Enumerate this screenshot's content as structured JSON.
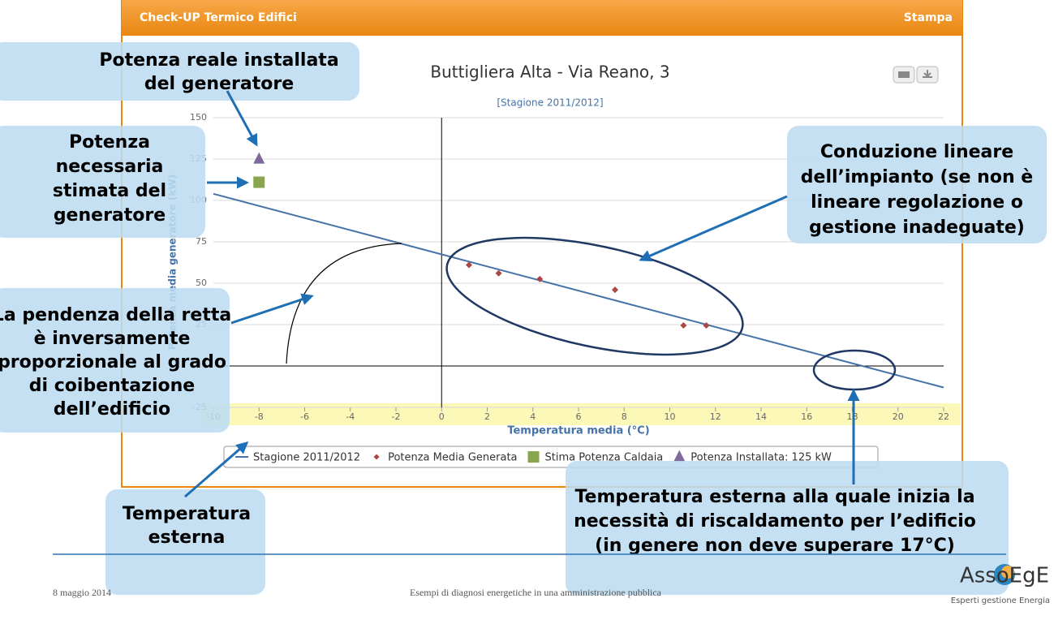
{
  "panel": {
    "title": "Check-UP Termico Edifici",
    "action": "Stampa"
  },
  "chart_data": {
    "type": "scatter",
    "title": "Buttigliera Alta - Via Reano, 3",
    "subtitle": "[Stagione 2011/2012]",
    "x_label": "Temperatura media (°C)",
    "y_label": "Potenza media generatore (kW)",
    "xlim": [
      -10,
      22
    ],
    "xticks": [
      -10,
      -8,
      -6,
      -4,
      -2,
      0,
      2,
      4,
      6,
      8,
      10,
      12,
      14,
      16,
      18,
      20,
      22
    ],
    "ylim": [
      -25,
      150
    ],
    "yticks": [
      -25,
      0,
      25,
      50,
      75,
      100,
      125,
      150
    ],
    "grid": true,
    "series": [
      {
        "name": "Stagione 2011/2012",
        "marker": "line",
        "color": "#4572a7",
        "x": [
          -10,
          22
        ],
        "values": [
          104,
          -13
        ]
      },
      {
        "name": "Potenza Media Generata",
        "marker": "diamond",
        "color": "#aa4643",
        "x": [
          1.2,
          2.5,
          4.3,
          7.6,
          10.6,
          11.6
        ],
        "values": [
          61,
          56,
          52.5,
          46,
          24.5,
          24.5
        ]
      },
      {
        "name": "Stima Potenza Caldaia",
        "marker": "square",
        "color": "#89a54e",
        "x": [
          -8
        ],
        "values": [
          111
        ]
      },
      {
        "name": "Potenza Installata: 125 kW",
        "marker": "triangle",
        "color": "#80699b",
        "x": [
          -8
        ],
        "values": [
          125
        ]
      }
    ]
  },
  "callouts": [
    {
      "lines": [
        "Potenza reale installata",
        "del generatore"
      ]
    },
    {
      "lines": [
        "Potenza",
        "necessaria",
        "stimata del",
        "generatore"
      ]
    },
    {
      "lines": [
        "La pendenza della retta",
        "è inversamente",
        "proporzionale al grado",
        "di coibentazione",
        "dell’edificio"
      ]
    },
    {
      "lines": [
        "Temperatura",
        "esterna"
      ]
    },
    {
      "lines": [
        "Conduzione lineare",
        "dell’impianto (se non è",
        "lineare regolazione o",
        "gestione inadeguate)"
      ]
    },
    {
      "lines": [
        "Temperatura esterna alla quale inizia la",
        "necessità di riscaldamento per l’edificio",
        "(in genere non deve superare 17°C)"
      ]
    }
  ],
  "footer": {
    "date": "8 maggio 2014",
    "center": "Esempi di diagnosi energetiche in una amministrazione pubblica"
  },
  "logo": {
    "name": "AssoEgE",
    "tagline": "Esperti gestione Energia"
  }
}
